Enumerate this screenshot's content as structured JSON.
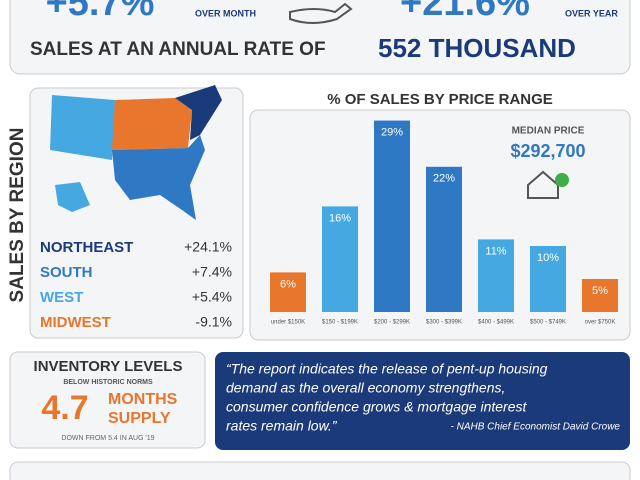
{
  "header": {
    "month_change": "+5.7%",
    "month_label": "OVER MONTH",
    "year_change": "+21.6%",
    "year_label": "OVER YEAR",
    "rate_text": "SALES AT AN ANNUAL RATE OF",
    "rate_value": "552 THOUSAND"
  },
  "regions": {
    "title": "SALES BY REGION",
    "items": [
      {
        "name": "NORTHEAST",
        "change": "+24.1%",
        "color": "#1b3a7a"
      },
      {
        "name": "SOUTH",
        "change": "+7.4%",
        "color": "#2f78c4"
      },
      {
        "name": "WEST",
        "change": "+5.4%",
        "color": "#45a8e0"
      },
      {
        "name": "MIDWEST",
        "change": "-9.1%",
        "color": "#e8762d"
      }
    ]
  },
  "chart_data": {
    "type": "bar",
    "title": "% OF SALES BY PRICE RANGE",
    "categories": [
      "under $150K",
      "$150 - $199K",
      "$200 - $299K",
      "$300 - $399K",
      "$400 - $499K",
      "$500 - $749K",
      "over $750K"
    ],
    "values": [
      6,
      16,
      29,
      22,
      11,
      10,
      5
    ],
    "value_labels": [
      "6%",
      "16%",
      "29%",
      "22%",
      "11%",
      "10%",
      "5%"
    ],
    "colors": [
      "#e8762d",
      "#45a8e0",
      "#2f78c4",
      "#2f78c4",
      "#45a8e0",
      "#45a8e0",
      "#e8762d"
    ]
  },
  "median": {
    "label": "MEDIAN PRICE",
    "value": "$292,700"
  },
  "inventory": {
    "title": "INVENTORY LEVELS",
    "subtitle": "BELOW HISTORIC NORMS",
    "value": "4.7",
    "unit_line1": "MONTHS",
    "unit_line2": "SUPPLY",
    "note": "DOWN FROM 5.4 IN AUG '19"
  },
  "quote": {
    "lines": [
      "“The report indicates the release of pent-up housing",
      "demand as the overall economy strengthens,",
      "consumer confidence grows & mortgage interest",
      "rates remain low.”"
    ],
    "attribution": "- NAHB Chief Economist David Crowe"
  }
}
